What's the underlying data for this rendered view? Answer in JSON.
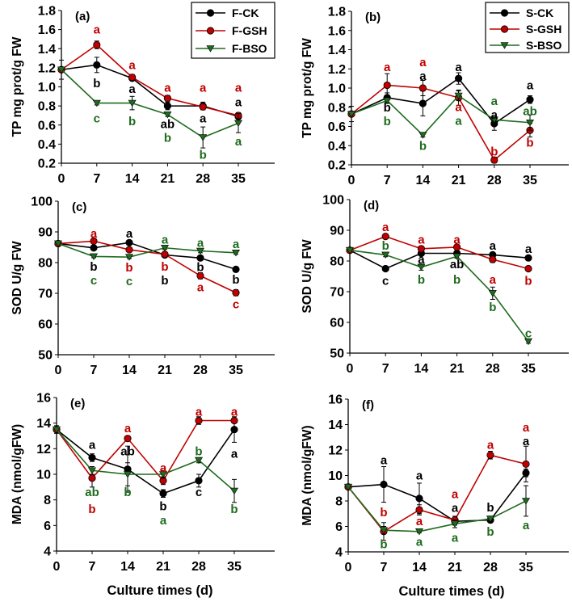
{
  "series_colors": {
    "CK": "#000000",
    "GSH": "#c00000",
    "BSO": "#1f6b1f"
  },
  "series_markers": {
    "CK": "circle",
    "GSH": "circle",
    "BSO": "triangle-down"
  },
  "chart_data": [
    {
      "type": "line",
      "panel_label": "(a)",
      "ylabel": "TP mg prot/g FW",
      "xlabel": "",
      "ylim": [
        0.2,
        1.8
      ],
      "yticks": [
        "0.2",
        "0.4",
        "0.6",
        "0.8",
        "1.0",
        "1.2",
        "1.4",
        "1.6",
        "1.8"
      ],
      "x": [
        0,
        7,
        14,
        21,
        28,
        35
      ],
      "xticks": [
        "0",
        "7",
        "14",
        "21",
        "28",
        "35"
      ],
      "legend": "top-right",
      "series": [
        {
          "key": "CK",
          "name": "F-CK",
          "values": [
            1.18,
            1.23,
            1.09,
            0.8,
            0.8,
            0.69
          ],
          "err": [
            0.1,
            0.08,
            0.02,
            0.04,
            0.04,
            0.03
          ]
        },
        {
          "key": "GSH",
          "name": "F-GSH",
          "values": [
            1.18,
            1.44,
            1.1,
            0.88,
            0.79,
            0.7
          ],
          "err": [
            0,
            0.04,
            0.03,
            0.03,
            0.03,
            0.03
          ]
        },
        {
          "key": "BSO",
          "name": "F-BSO",
          "values": [
            1.18,
            0.83,
            0.83,
            0.71,
            0.47,
            0.62
          ],
          "err": [
            0,
            0.02,
            0.07,
            0.02,
            0.11,
            0.1
          ]
        }
      ],
      "annotations": [
        {
          "x": 7,
          "y": 1.6,
          "text": "a",
          "series": "GSH"
        },
        {
          "x": 7,
          "y": 1.04,
          "text": "b",
          "series": "CK"
        },
        {
          "x": 7,
          "y": 0.67,
          "text": "c",
          "series": "BSO"
        },
        {
          "x": 14,
          "y": 1.23,
          "text": "a",
          "series": "GSH"
        },
        {
          "x": 14,
          "y": 0.98,
          "text": "a",
          "series": "CK"
        },
        {
          "x": 14,
          "y": 0.64,
          "text": "b",
          "series": "BSO"
        },
        {
          "x": 21,
          "y": 0.99,
          "text": "a",
          "series": "GSH"
        },
        {
          "x": 21,
          "y": 0.6,
          "text": "ab",
          "series": "CK"
        },
        {
          "x": 21,
          "y": 0.48,
          "text": "b",
          "series": "BSO"
        },
        {
          "x": 28,
          "y": 0.99,
          "text": "a",
          "series": "GSH"
        },
        {
          "x": 28,
          "y": 0.67,
          "text": "a",
          "series": "CK"
        },
        {
          "x": 28,
          "y": 0.29,
          "text": "b",
          "series": "BSO"
        },
        {
          "x": 35,
          "y": 0.99,
          "text": "a",
          "series": "GSH"
        },
        {
          "x": 35,
          "y": 0.84,
          "text": "a",
          "series": "CK"
        },
        {
          "x": 35,
          "y": 0.43,
          "text": "a",
          "series": "BSO"
        }
      ]
    },
    {
      "type": "line",
      "panel_label": "(b)",
      "ylabel": "TP mg prot/g FW",
      "xlabel": "",
      "ylim": [
        0.2,
        1.8
      ],
      "yticks": [
        "0.2",
        "0.4",
        "0.6",
        "0.8",
        "1.0",
        "1.2",
        "1.4",
        "1.6",
        "1.8"
      ],
      "x": [
        0,
        7,
        14,
        21,
        28,
        35
      ],
      "xticks": [
        "0",
        "7",
        "14",
        "21",
        "28",
        "35"
      ],
      "legend": "top-right",
      "series": [
        {
          "key": "CK",
          "name": "S-CK",
          "values": [
            0.73,
            0.9,
            0.84,
            1.1,
            0.63,
            0.88
          ],
          "err": [
            0.08,
            0.05,
            0.13,
            0.06,
            0.07,
            0.04
          ]
        },
        {
          "key": "GSH",
          "name": "S-GSH",
          "values": [
            0.73,
            1.03,
            1.0,
            0.9,
            0.25,
            0.56
          ],
          "err": [
            0,
            0.12,
            0.08,
            0.08,
            0.03,
            0.07
          ]
        },
        {
          "key": "BSO",
          "name": "S-BSO",
          "values": [
            0.73,
            0.87,
            0.51,
            0.92,
            0.67,
            0.64
          ],
          "err": [
            0,
            0.03,
            0.02,
            0.05,
            0.03,
            0.08
          ]
        }
      ],
      "annotations": [
        {
          "x": 7,
          "y": 1.22,
          "text": "a",
          "series": "GSH"
        },
        {
          "x": 7,
          "y": 0.79,
          "text": "b",
          "series": "CK"
        },
        {
          "x": 7,
          "y": 0.66,
          "text": "b",
          "series": "BSO"
        },
        {
          "x": 14,
          "y": 1.25,
          "text": "a",
          "series": "GSH"
        },
        {
          "x": 14,
          "y": 1.15,
          "text": "a",
          "series": "CK"
        },
        {
          "x": 14,
          "y": 0.4,
          "text": "b",
          "series": "BSO"
        },
        {
          "x": 21,
          "y": 1.22,
          "text": "a",
          "series": "CK"
        },
        {
          "x": 21,
          "y": 0.79,
          "text": "a",
          "series": "GSH"
        },
        {
          "x": 21,
          "y": 0.67,
          "text": "a",
          "series": "BSO"
        },
        {
          "x": 28,
          "y": 0.84,
          "text": "a",
          "series": "BSO"
        },
        {
          "x": 28,
          "y": 0.75,
          "text": "a",
          "series": "CK"
        },
        {
          "x": 28,
          "y": 0.34,
          "text": "b",
          "series": "GSH"
        },
        {
          "x": 35,
          "y": 1.03,
          "text": "a",
          "series": "CK"
        },
        {
          "x": 35,
          "y": 0.76,
          "text": "ab",
          "series": "BSO"
        },
        {
          "x": 35,
          "y": 0.43,
          "text": "b",
          "series": "GSH"
        }
      ]
    },
    {
      "type": "line",
      "panel_label": "(c)",
      "ylabel": "SOD U/g FW",
      "xlabel": "",
      "ylim": [
        50,
        100
      ],
      "yticks": [
        "50",
        "60",
        "70",
        "80",
        "90",
        "100"
      ],
      "x": [
        0,
        7,
        14,
        21,
        28,
        35
      ],
      "xticks": [
        "0",
        "7",
        "14",
        "21",
        "28",
        "35"
      ],
      "series": [
        {
          "key": "CK",
          "name": "",
          "values": [
            86.2,
            84.8,
            86.5,
            82.5,
            81.5,
            77.8
          ],
          "err": [
            0.5,
            0.7,
            0.5,
            0.5,
            0.7,
            0.5
          ]
        },
        {
          "key": "GSH",
          "name": "",
          "values": [
            86.2,
            87.0,
            84.2,
            82.7,
            75.7,
            70.2
          ],
          "err": [
            0,
            0.6,
            0.5,
            0.5,
            1.0,
            1.0
          ]
        },
        {
          "key": "BSO",
          "name": "",
          "values": [
            86.2,
            82.0,
            81.8,
            84.8,
            83.8,
            83.2
          ],
          "err": [
            0,
            0.4,
            0.5,
            0.5,
            0.6,
            0.5
          ]
        }
      ],
      "annotations": [
        {
          "x": 7,
          "y": 89.5,
          "text": "a",
          "series": "GSH"
        },
        {
          "x": 7,
          "y": 78.5,
          "text": "b",
          "series": "CK"
        },
        {
          "x": 7,
          "y": 74.5,
          "text": "c",
          "series": "BSO"
        },
        {
          "x": 14,
          "y": 89.5,
          "text": "a",
          "series": "CK"
        },
        {
          "x": 14,
          "y": 78.0,
          "text": "b",
          "series": "GSH"
        },
        {
          "x": 14,
          "y": 74.5,
          "text": "c",
          "series": "BSO"
        },
        {
          "x": 21,
          "y": 87.5,
          "text": "a",
          "series": "BSO"
        },
        {
          "x": 21,
          "y": 78.5,
          "text": "b",
          "series": "GSH"
        },
        {
          "x": 21,
          "y": 74.5,
          "text": "b",
          "series": "CK"
        },
        {
          "x": 28,
          "y": 86.5,
          "text": "a",
          "series": "BSO"
        },
        {
          "x": 28,
          "y": 78.5,
          "text": "b",
          "series": "CK"
        },
        {
          "x": 28,
          "y": 72.0,
          "text": "a",
          "series": "GSH"
        },
        {
          "x": 35,
          "y": 86.0,
          "text": "a",
          "series": "BSO"
        },
        {
          "x": 35,
          "y": 74.5,
          "text": "b",
          "series": "CK"
        },
        {
          "x": 35,
          "y": 66.5,
          "text": "c",
          "series": "GSH"
        }
      ]
    },
    {
      "type": "line",
      "panel_label": "(d)",
      "ylabel": "SOD U/g FW",
      "xlabel": "",
      "ylim": [
        50,
        100
      ],
      "yticks": [
        "50",
        "60",
        "70",
        "80",
        "90",
        "100"
      ],
      "x": [
        0,
        7,
        14,
        21,
        28,
        35
      ],
      "xticks": [
        "0",
        "7",
        "14",
        "21",
        "28",
        "35"
      ],
      "series": [
        {
          "key": "CK",
          "name": "",
          "values": [
            83.5,
            77.5,
            82.5,
            82.5,
            82.0,
            81.0
          ],
          "err": [
            0.5,
            0.5,
            0.5,
            0.5,
            0.5,
            0.5
          ]
        },
        {
          "key": "GSH",
          "name": "",
          "values": [
            83.5,
            88.0,
            84.0,
            84.5,
            80.5,
            77.5
          ],
          "err": [
            0,
            0.5,
            0.5,
            0.5,
            1.0,
            0.5
          ]
        },
        {
          "key": "BSO",
          "name": "",
          "values": [
            83.5,
            82.0,
            78.0,
            81.5,
            69.5,
            53.8
          ],
          "err": [
            0,
            0.6,
            1.0,
            0.6,
            2.0,
            0.6
          ]
        }
      ],
      "annotations": [
        {
          "x": 7,
          "y": 91.0,
          "text": "a",
          "series": "GSH"
        },
        {
          "x": 7,
          "y": 85.0,
          "text": "b",
          "series": "BSO"
        },
        {
          "x": 7,
          "y": 73.5,
          "text": "c",
          "series": "CK"
        },
        {
          "x": 14,
          "y": 87.0,
          "text": "a",
          "series": "GSH"
        },
        {
          "x": 14,
          "y": 80.5,
          "text": "a",
          "series": "CK"
        },
        {
          "x": 14,
          "y": 74.0,
          "text": "b",
          "series": "BSO"
        },
        {
          "x": 21,
          "y": 87.0,
          "text": "a",
          "series": "GSH"
        },
        {
          "x": 21,
          "y": 79.0,
          "text": "ab",
          "series": "CK"
        },
        {
          "x": 21,
          "y": 74.0,
          "text": "b",
          "series": "BSO"
        },
        {
          "x": 28,
          "y": 85.0,
          "text": "a",
          "series": "CK"
        },
        {
          "x": 28,
          "y": 74.0,
          "text": "a",
          "series": "GSH"
        },
        {
          "x": 28,
          "y": 65.0,
          "text": "b",
          "series": "BSO"
        },
        {
          "x": 35,
          "y": 84.0,
          "text": "a",
          "series": "CK"
        },
        {
          "x": 35,
          "y": 73.5,
          "text": "b",
          "series": "GSH"
        },
        {
          "x": 35,
          "y": 56.5,
          "text": "c",
          "series": "BSO"
        }
      ]
    },
    {
      "type": "line",
      "panel_label": "(e)",
      "ylabel": "MDA (nmol/gFW)",
      "xlabel": "Culture times (d)",
      "ylim": [
        4,
        16
      ],
      "yticks": [
        "4",
        "6",
        "8",
        "10",
        "12",
        "14",
        "16"
      ],
      "x": [
        0,
        7,
        14,
        21,
        28,
        35
      ],
      "xticks": [
        "0",
        "7",
        "14",
        "21",
        "28",
        "35"
      ],
      "series": [
        {
          "key": "CK",
          "name": "",
          "values": [
            13.5,
            11.3,
            10.4,
            8.5,
            9.5,
            13.5
          ],
          "err": [
            0.3,
            0.3,
            1.8,
            0.3,
            0.5,
            1.0
          ]
        },
        {
          "key": "GSH",
          "name": "",
          "values": [
            13.5,
            9.7,
            12.8,
            9.5,
            14.2,
            14.2
          ],
          "err": [
            0,
            0.7,
            0.2,
            0.3,
            0.3,
            0.2
          ]
        },
        {
          "key": "BSO",
          "name": "",
          "values": [
            13.5,
            10.3,
            10.0,
            10.0,
            11.1,
            8.7
          ],
          "err": [
            0,
            0.3,
            0.9,
            0.3,
            0.2,
            0.9
          ]
        }
      ],
      "annotations": [
        {
          "x": 7,
          "y": 12.3,
          "text": "a",
          "series": "CK"
        },
        {
          "x": 7,
          "y": 8.6,
          "text": "ab",
          "series": "BSO"
        },
        {
          "x": 7,
          "y": 7.3,
          "text": "b",
          "series": "GSH"
        },
        {
          "x": 14,
          "y": 13.6,
          "text": "a",
          "series": "GSH"
        },
        {
          "x": 14,
          "y": 11.8,
          "text": "ab",
          "series": "CK"
        },
        {
          "x": 14,
          "y": 8.6,
          "text": "b",
          "series": "BSO"
        },
        {
          "x": 21,
          "y": 10.5,
          "text": "a",
          "series": "GSH"
        },
        {
          "x": 21,
          "y": 7.5,
          "text": "b",
          "series": "CK"
        },
        {
          "x": 21,
          "y": 6.4,
          "text": "a",
          "series": "BSO"
        },
        {
          "x": 28,
          "y": 14.9,
          "text": "a",
          "series": "GSH"
        },
        {
          "x": 28,
          "y": 11.8,
          "text": "b",
          "series": "BSO"
        },
        {
          "x": 28,
          "y": 8.6,
          "text": "c",
          "series": "CK"
        },
        {
          "x": 35,
          "y": 14.9,
          "text": "a",
          "series": "GSH"
        },
        {
          "x": 35,
          "y": 11.6,
          "text": "a",
          "series": "CK"
        },
        {
          "x": 35,
          "y": 7.3,
          "text": "b",
          "series": "BSO"
        }
      ]
    },
    {
      "type": "line",
      "panel_label": "(f)",
      "ylabel": "MDA (nmol/gFW)",
      "xlabel": "Culture times (d)",
      "ylim": [
        4,
        16
      ],
      "yticks": [
        "4",
        "6",
        "8",
        "10",
        "12",
        "14",
        "16"
      ],
      "x": [
        0,
        7,
        14,
        21,
        28,
        35
      ],
      "xticks": [
        "0",
        "7",
        "14",
        "21",
        "28",
        "35"
      ],
      "series": [
        {
          "key": "CK",
          "name": "",
          "values": [
            9.1,
            9.3,
            8.2,
            6.4,
            6.5,
            10.2
          ],
          "err": [
            0,
            1.4,
            1.2,
            0.3,
            0.2,
            0.3
          ]
        },
        {
          "key": "GSH",
          "name": "",
          "values": [
            9.1,
            5.6,
            7.3,
            6.5,
            11.6,
            10.9
          ],
          "err": [
            0,
            0.7,
            0.4,
            0.3,
            0.3,
            1.4
          ]
        },
        {
          "key": "BSO",
          "name": "",
          "values": [
            9.1,
            5.7,
            5.6,
            6.2,
            6.6,
            8.0
          ],
          "err": [
            0,
            0.3,
            0.1,
            0.3,
            0.2,
            1.2
          ]
        }
      ],
      "annotations": [
        {
          "x": 7,
          "y": 11.2,
          "text": "a",
          "series": "CK"
        },
        {
          "x": 7,
          "y": 7.1,
          "text": "b",
          "series": "GSH"
        },
        {
          "x": 7,
          "y": 4.6,
          "text": "b",
          "series": "BSO"
        },
        {
          "x": 14,
          "y": 10.0,
          "text": "a",
          "series": "CK"
        },
        {
          "x": 14,
          "y": 6.4,
          "text": "a",
          "series": "GSH"
        },
        {
          "x": 14,
          "y": 4.8,
          "text": "a",
          "series": "BSO"
        },
        {
          "x": 21,
          "y": 8.5,
          "text": "a",
          "series": "GSH"
        },
        {
          "x": 21,
          "y": 7.5,
          "text": "a",
          "series": "CK"
        },
        {
          "x": 21,
          "y": 5.1,
          "text": "a",
          "series": "BSO"
        },
        {
          "x": 28,
          "y": 12.4,
          "text": "a",
          "series": "GSH"
        },
        {
          "x": 28,
          "y": 7.5,
          "text": "b",
          "series": "CK"
        },
        {
          "x": 28,
          "y": 5.6,
          "text": "b",
          "series": "BSO"
        },
        {
          "x": 35,
          "y": 13.7,
          "text": "a",
          "series": "GSH"
        },
        {
          "x": 35,
          "y": 12.8,
          "text": "a",
          "series": "CK"
        },
        {
          "x": 35,
          "y": 6.1,
          "text": "a",
          "series": "BSO"
        }
      ]
    }
  ]
}
